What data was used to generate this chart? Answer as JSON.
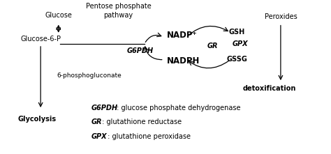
{
  "figsize": [
    4.74,
    2.21
  ],
  "dpi": 100,
  "colors": {
    "text": "#1a1a1a",
    "arrow": "#1a1a1a",
    "bg": "#f0f0f0"
  },
  "labels": {
    "glucose": "Glucose",
    "g6p": "Glucose-6-P",
    "nadp": "NADP⁺",
    "nadph": "NADPH",
    "gsh": "GSH",
    "gssg": "GSSG",
    "peroxides": "Peroxides",
    "detox": "detoxification",
    "glycolysis": "Glycolysis",
    "phospho": "6-phosphogluconate",
    "pathway": "Pentose phosphate\npathway",
    "g6pdh_label": "G6PDH",
    "gr_label": "GR",
    "gpx_label": "GPX"
  },
  "legend_lines": [
    [
      "G6PDH",
      " : glucose phosphate dehydrogenase"
    ],
    [
      "GR",
      " : glutathione reductase"
    ],
    [
      "GPX",
      " : glutathione peroxidase"
    ]
  ]
}
